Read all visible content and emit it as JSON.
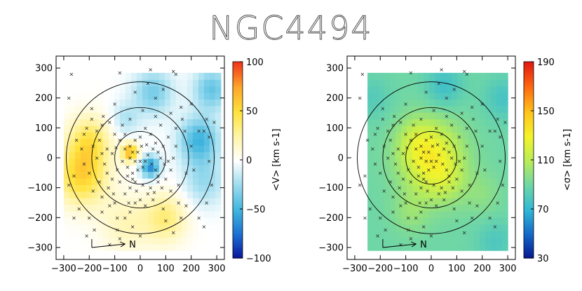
{
  "figure": {
    "title": "NGC4494"
  },
  "chart_data": [
    {
      "type": "heatmap",
      "title": "NGC4494",
      "panel": "left",
      "quantity": "mean velocity <V>",
      "colorbar_label": "<V> [km s-1]",
      "colorbar_range": [
        -100,
        100
      ],
      "colorbar_ticks": [
        "100",
        "50",
        "0",
        "−50",
        "−100"
      ],
      "colormap": [
        "#08129a",
        "#1c6fd2",
        "#41b6de",
        "#9bdbee",
        "#ffffff",
        "#fff4a8",
        "#ffe23a",
        "#ffa62a",
        "#f0381a"
      ],
      "xlim": [
        -330,
        330
      ],
      "ylim": [
        -340,
        340
      ],
      "xticks": [
        "−300",
        "−200",
        "−100",
        "0",
        "100",
        "200",
        "300"
      ],
      "yticks": [
        "300",
        "200",
        "100",
        "0",
        "−100",
        "−200",
        "−300"
      ],
      "map_extent": {
        "x": [
          -300,
          300
        ],
        "y": [
          -310,
          270
        ]
      },
      "ellipses_semi_axes": [
        [
          100,
          88
        ],
        [
          190,
          168
        ],
        [
          290,
          254
        ]
      ],
      "compass_label": "N",
      "features": [
        {
          "x": -230,
          "y": -60,
          "value": 55,
          "sigma": 70
        },
        {
          "x": -200,
          "y": 60,
          "value": 40,
          "sigma": 60
        },
        {
          "x": -40,
          "y": 20,
          "value": 70,
          "sigma": 22
        },
        {
          "x": 100,
          "y": -200,
          "value": 35,
          "sigma": 60
        },
        {
          "x": -60,
          "y": -220,
          "value": 20,
          "sigma": 70
        },
        {
          "x": 40,
          "y": -30,
          "value": -65,
          "sigma": 26
        },
        {
          "x": 230,
          "y": 60,
          "value": -50,
          "sigma": 55
        },
        {
          "x": 280,
          "y": 230,
          "value": -40,
          "sigma": 50
        },
        {
          "x": 50,
          "y": 220,
          "value": -35,
          "sigma": 55
        },
        {
          "x": 250,
          "y": -80,
          "value": -25,
          "sigma": 60
        },
        {
          "x": -60,
          "y": 130,
          "value": -20,
          "sigma": 40
        }
      ]
    },
    {
      "type": "heatmap",
      "title": "NGC4494",
      "panel": "right",
      "quantity": "velocity dispersion <σ>",
      "colorbar_label": "<σ> [km s-1]",
      "colorbar_range": [
        30,
        190
      ],
      "colorbar_ticks": [
        "190",
        "150",
        "110",
        "70",
        "30"
      ],
      "colormap": [
        "#06148e",
        "#1567c8",
        "#2fb8d6",
        "#6fd6a6",
        "#b9ec58",
        "#f4f32a",
        "#ffc21a",
        "#ff6a10",
        "#e31a12"
      ],
      "xlim": [
        -330,
        330
      ],
      "ylim": [
        -340,
        340
      ],
      "xticks": [
        "−300",
        "−200",
        "−100",
        "0",
        "100",
        "200",
        "300"
      ],
      "yticks": [
        "300",
        "200",
        "100",
        "0",
        "−100",
        "−200",
        "−300"
      ],
      "map_extent": {
        "x": [
          -250,
          300
        ],
        "y": [
          -310,
          270
        ]
      },
      "ellipses_semi_axes": [
        [
          100,
          88
        ],
        [
          190,
          168
        ],
        [
          290,
          254
        ]
      ],
      "compass_label": "N",
      "base_value": 90,
      "features": [
        {
          "x": 0,
          "y": 0,
          "value": 40,
          "sigma": 85
        },
        {
          "x": -60,
          "y": 60,
          "value": 12,
          "sigma": 50
        },
        {
          "x": 60,
          "y": -80,
          "value": 10,
          "sigma": 55
        },
        {
          "x": -80,
          "y": -180,
          "value": 10,
          "sigma": 50
        },
        {
          "x": 200,
          "y": -120,
          "value": 8,
          "sigma": 50
        },
        {
          "x": 50,
          "y": 240,
          "value": -15,
          "sigma": 50
        },
        {
          "x": 280,
          "y": 200,
          "value": -12,
          "sigma": 50
        },
        {
          "x": 250,
          "y": -280,
          "value": -10,
          "sigma": 50
        },
        {
          "x": -230,
          "y": 200,
          "value": -8,
          "sigma": 50
        }
      ]
    }
  ],
  "markers": {
    "symbol": "×",
    "points": [
      [
        -270,
        280
      ],
      [
        -80,
        285
      ],
      [
        40,
        295
      ],
      [
        130,
        290
      ],
      [
        140,
        280
      ],
      [
        -280,
        200
      ],
      [
        -190,
        165
      ],
      [
        -145,
        140
      ],
      [
        -120,
        120
      ],
      [
        -70,
        110
      ],
      [
        -40,
        130
      ],
      [
        10,
        160
      ],
      [
        60,
        140
      ],
      [
        80,
        110
      ],
      [
        120,
        150
      ],
      [
        200,
        180
      ],
      [
        260,
        130
      ],
      [
        250,
        90
      ],
      [
        230,
        90
      ],
      [
        290,
        120
      ],
      [
        270,
        70
      ],
      [
        -220,
        80
      ],
      [
        -185,
        40
      ],
      [
        -160,
        60
      ],
      [
        -130,
        30
      ],
      [
        -110,
        15
      ],
      [
        -140,
        -20
      ],
      [
        -130,
        -50
      ],
      [
        -160,
        -80
      ],
      [
        -185,
        -110
      ],
      [
        -150,
        -130
      ],
      [
        -120,
        -160
      ],
      [
        -100,
        -150
      ],
      [
        -200,
        -200
      ],
      [
        -240,
        -170
      ],
      [
        -260,
        -200
      ],
      [
        -90,
        -240
      ],
      [
        -80,
        -270
      ],
      [
        -60,
        -200
      ],
      [
        -40,
        -180
      ],
      [
        -20,
        -150
      ],
      [
        0,
        -140
      ],
      [
        20,
        -160
      ],
      [
        50,
        -140
      ],
      [
        90,
        -170
      ],
      [
        120,
        -110
      ],
      [
        150,
        -90
      ],
      [
        180,
        -50
      ],
      [
        210,
        -40
      ],
      [
        270,
        -10
      ],
      [
        280,
        -90
      ],
      [
        260,
        -150
      ],
      [
        230,
        -200
      ],
      [
        250,
        -230
      ],
      [
        160,
        -200
      ],
      [
        130,
        -250
      ],
      [
        0,
        -260
      ],
      [
        -30,
        -230
      ],
      [
        -180,
        -240
      ],
      [
        -210,
        -260
      ],
      [
        -120,
        -290
      ],
      [
        -90,
        -200
      ],
      [
        -60,
        -120
      ],
      [
        -40,
        -100
      ],
      [
        -20,
        -80
      ],
      [
        10,
        -90
      ],
      [
        40,
        -100
      ],
      [
        70,
        -80
      ],
      [
        100,
        -70
      ],
      [
        120,
        -40
      ],
      [
        130,
        0
      ],
      [
        140,
        40
      ],
      [
        110,
        70
      ],
      [
        90,
        40
      ],
      [
        70,
        20
      ],
      [
        60,
        50
      ],
      [
        40,
        80
      ],
      [
        20,
        100
      ],
      [
        0,
        70
      ],
      [
        -20,
        60
      ],
      [
        -40,
        40
      ],
      [
        -60,
        30
      ],
      [
        -70,
        -10
      ],
      [
        -50,
        -30
      ],
      [
        -30,
        -50
      ],
      [
        -10,
        -40
      ],
      [
        10,
        -30
      ],
      [
        20,
        -10
      ],
      [
        30,
        10
      ],
      [
        45,
        -20
      ],
      [
        60,
        -40
      ],
      [
        70,
        -60
      ],
      [
        -80,
        60
      ],
      [
        -100,
        80
      ],
      [
        -60,
        80
      ],
      [
        -30,
        20
      ],
      [
        -10,
        20
      ],
      [
        0,
        -10
      ],
      [
        -20,
        -10
      ],
      [
        -40,
        0
      ],
      [
        5,
        40
      ],
      [
        25,
        45
      ],
      [
        50,
        30
      ],
      [
        80,
        0
      ],
      [
        95,
        -20
      ],
      [
        110,
        -10
      ],
      [
        -90,
        -40
      ],
      [
        -110,
        -70
      ],
      [
        -80,
        -80
      ],
      [
        -50,
        -60
      ],
      [
        -30,
        -70
      ],
      [
        -15,
        -110
      ],
      [
        30,
        -120
      ],
      [
        55,
        -115
      ],
      [
        85,
        -100
      ],
      [
        -150,
        110
      ],
      [
        -170,
        90
      ],
      [
        -190,
        130
      ],
      [
        -210,
        100
      ],
      [
        -220,
        -20
      ],
      [
        -200,
        -50
      ],
      [
        -230,
        30
      ],
      [
        -260,
        -60
      ],
      [
        -280,
        -90
      ],
      [
        -250,
        60
      ],
      [
        175,
        90
      ],
      [
        165,
        130
      ],
      [
        200,
        40
      ],
      [
        140,
        100
      ],
      [
        -45,
        -150
      ],
      [
        -105,
        -120
      ],
      [
        -125,
        -100
      ],
      [
        -170,
        0
      ],
      [
        -150,
        15
      ],
      [
        -95,
        35
      ],
      [
        150,
        -150
      ],
      [
        180,
        -160
      ],
      [
        100,
        -210
      ],
      [
        -150,
        -180
      ],
      [
        -20,
        220
      ],
      [
        60,
        200
      ],
      [
        30,
        250
      ],
      [
        90,
        230
      ],
      [
        -100,
        180
      ],
      [
        160,
        170
      ]
    ]
  }
}
